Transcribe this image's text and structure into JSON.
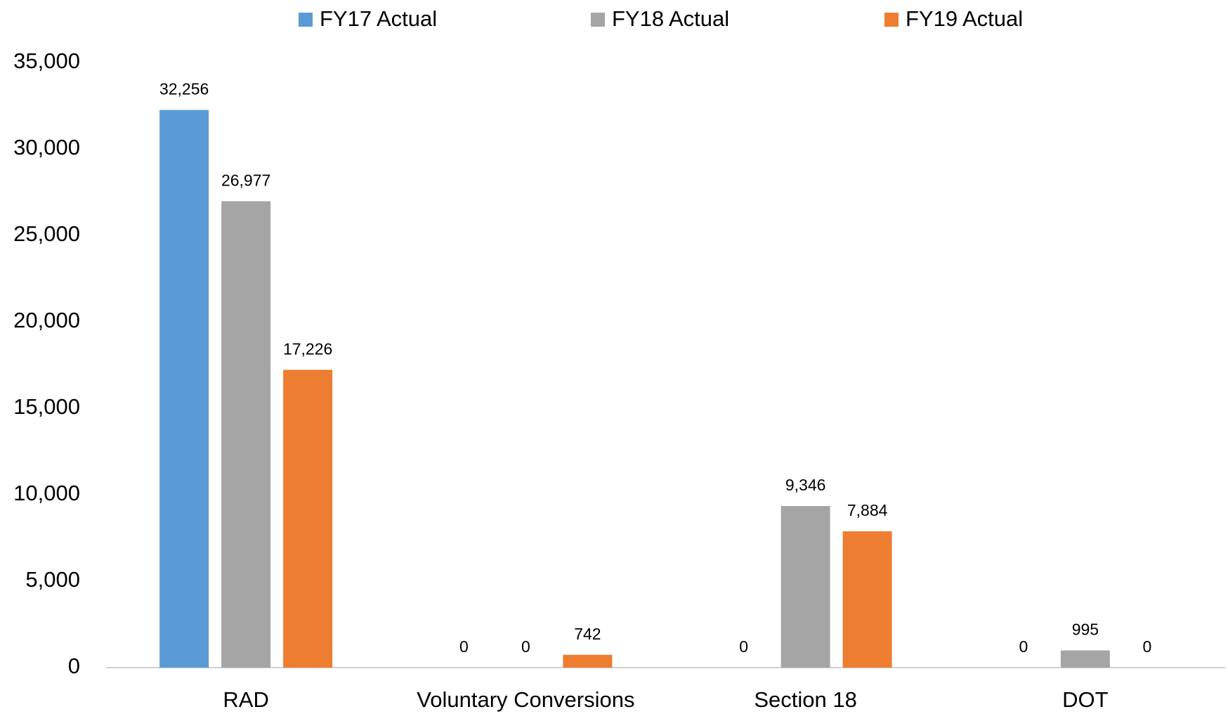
{
  "chart_data": {
    "type": "bar",
    "categories": [
      "RAD",
      "Voluntary Conversions",
      "Section 18",
      "DOT"
    ],
    "series": [
      {
        "name": "FY17 Actual",
        "color": "#5b9bd5",
        "values": [
          32256,
          0,
          0,
          0
        ],
        "value_labels": [
          "32,256",
          "0",
          "0",
          "0"
        ]
      },
      {
        "name": "FY18 Actual",
        "color": "#a5a5a5",
        "values": [
          26977,
          0,
          9346,
          995
        ],
        "value_labels": [
          "26,977",
          "0",
          "9,346",
          "995"
        ]
      },
      {
        "name": "FY19 Actual",
        "color": "#ed7d31",
        "values": [
          17226,
          742,
          7884,
          0
        ],
        "value_labels": [
          "17,226",
          "742",
          "7,884",
          "0"
        ]
      }
    ],
    "ylim": [
      0,
      35000
    ],
    "yticks": [
      0,
      {
        "value": 5000,
        "label": "5,000"
      },
      {
        "value": 10000,
        "label": "10,000"
      },
      {
        "value": 15000,
        "label": "15,000"
      },
      {
        "value": 20000,
        "label": "20,000"
      },
      {
        "value": 25000,
        "label": "25,000"
      },
      {
        "value": 30000,
        "label": "30,000"
      },
      {
        "value": 35000,
        "label": "35,000"
      }
    ],
    "legend": "top",
    "grid": false
  }
}
